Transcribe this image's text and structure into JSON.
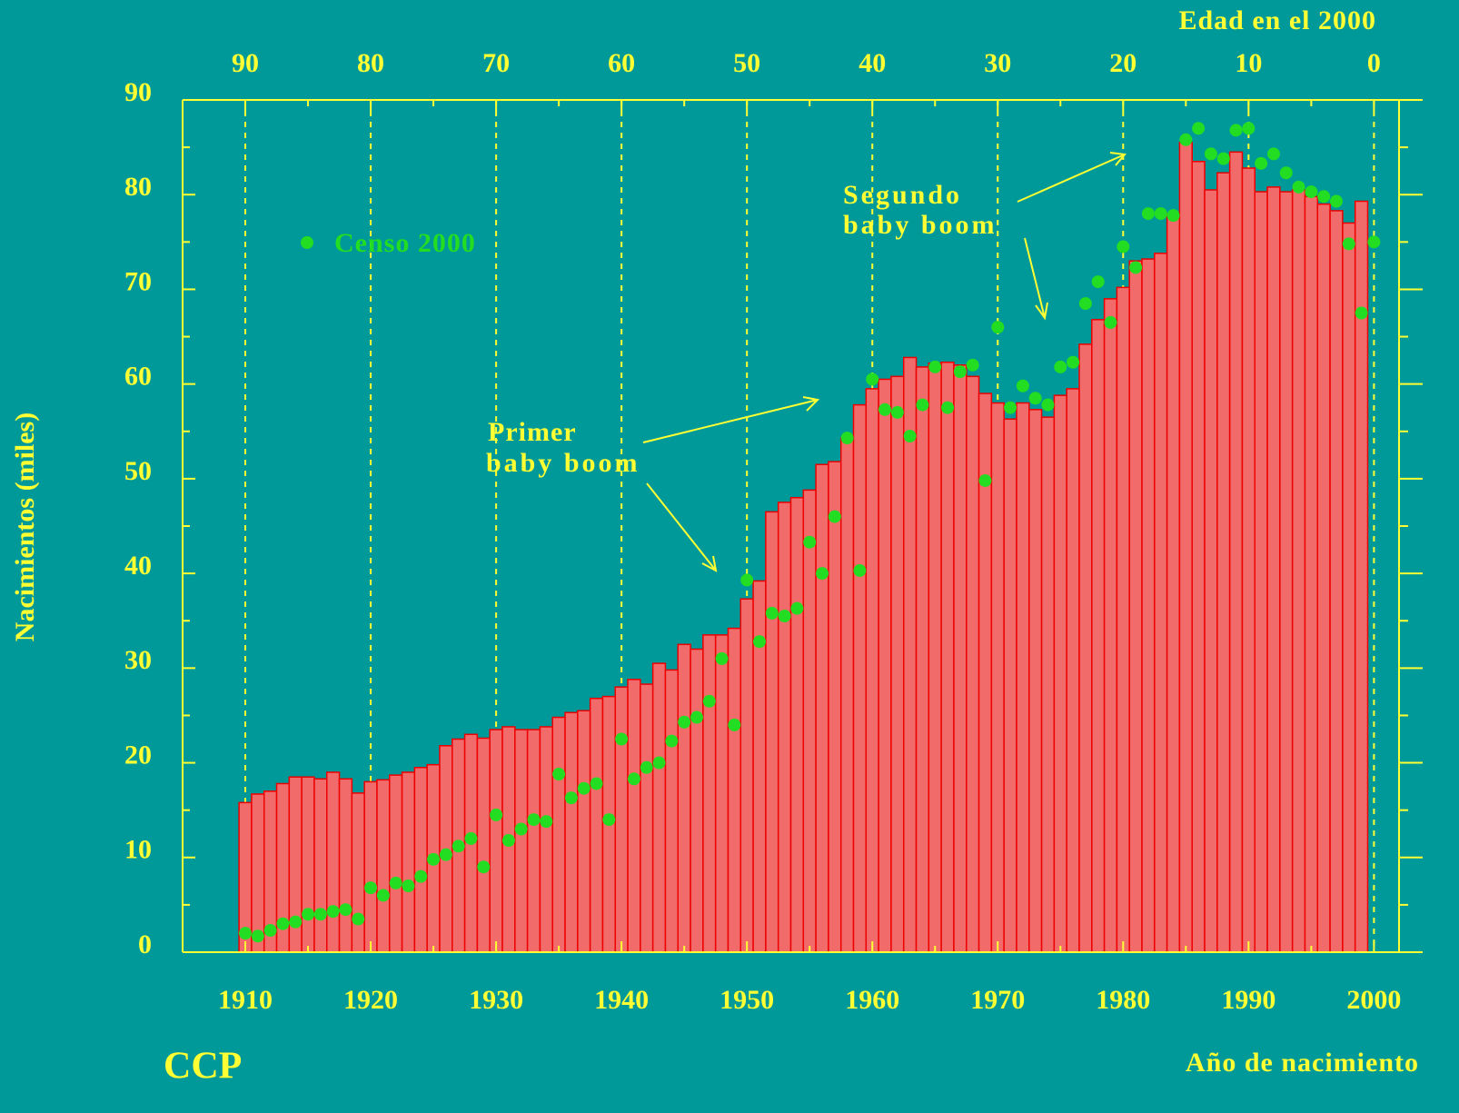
{
  "chart_data": {
    "type": "bar",
    "xlabel": "Año de nacimiento",
    "ylabel": "Nacimientos (miles)",
    "x2label": "Edad en el 2000",
    "xlim": [
      1905,
      2002
    ],
    "xticks": [
      1910,
      1920,
      1930,
      1940,
      1950,
      1960,
      1970,
      1980,
      1990,
      2000
    ],
    "x2lim": [
      95,
      -2
    ],
    "x2ticks": [
      90,
      80,
      70,
      60,
      50,
      40,
      30,
      20,
      10,
      0
    ],
    "ylim": [
      0,
      90
    ],
    "yticks": [
      0,
      10,
      20,
      30,
      40,
      50,
      60,
      70,
      80,
      90
    ],
    "grid": true,
    "legend": "upper left",
    "series": [
      {
        "type": "bar",
        "color": "#f26b6b",
        "x": [
          1910,
          1911,
          1912,
          1913,
          1914,
          1915,
          1916,
          1917,
          1918,
          1919,
          1920,
          1921,
          1922,
          1923,
          1924,
          1925,
          1926,
          1927,
          1928,
          1929,
          1930,
          1931,
          1932,
          1933,
          1934,
          1935,
          1936,
          1937,
          1938,
          1939,
          1940,
          1941,
          1942,
          1943,
          1944,
          1945,
          1946,
          1947,
          1948,
          1949,
          1950,
          1951,
          1952,
          1953,
          1954,
          1955,
          1956,
          1957,
          1958,
          1959,
          1960,
          1961,
          1962,
          1963,
          1964,
          1965,
          1966,
          1967,
          1968,
          1969,
          1970,
          1971,
          1972,
          1973,
          1974,
          1975,
          1976,
          1977,
          1978,
          1979,
          1980,
          1981,
          1982,
          1983,
          1984,
          1985,
          1986,
          1987,
          1988,
          1989,
          1990,
          1991,
          1992,
          1993,
          1994,
          1995,
          1996,
          1997,
          1998,
          1999
        ],
        "values": [
          15.8,
          16.7,
          17.0,
          17.8,
          18.5,
          18.5,
          18.3,
          19.0,
          18.3,
          16.8,
          18.0,
          18.2,
          18.7,
          19.0,
          19.5,
          19.8,
          21.8,
          22.5,
          23.0,
          22.6,
          23.5,
          23.8,
          23.5,
          23.5,
          23.8,
          24.8,
          25.3,
          25.5,
          26.8,
          27.0,
          28.0,
          28.8,
          28.3,
          30.5,
          29.8,
          32.5,
          32.0,
          33.5,
          33.5,
          34.2,
          37.3,
          39.2,
          46.5,
          47.5,
          48.0,
          48.8,
          51.5,
          51.8,
          54.3,
          57.8,
          59.5,
          60.5,
          60.8,
          62.8,
          61.8,
          62.2,
          62.3,
          62.0,
          60.8,
          59.0,
          58.0,
          56.3,
          58.0,
          57.3,
          56.5,
          58.8,
          59.5,
          64.2,
          66.8,
          69.0,
          70.2,
          73.0,
          73.2,
          73.8,
          78.0,
          85.5,
          83.5,
          80.5,
          82.3,
          84.5,
          82.8,
          80.3,
          80.8,
          80.3,
          80.5,
          79.8,
          79.0,
          78.3,
          77.0,
          79.3
        ]
      },
      {
        "type": "scatter",
        "name": "Censo 2000",
        "color": "#22dd22",
        "x": [
          1910,
          1911,
          1912,
          1913,
          1914,
          1915,
          1916,
          1917,
          1918,
          1919,
          1920,
          1921,
          1922,
          1923,
          1924,
          1925,
          1926,
          1927,
          1928,
          1929,
          1930,
          1931,
          1932,
          1933,
          1934,
          1935,
          1936,
          1937,
          1938,
          1939,
          1940,
          1941,
          1942,
          1943,
          1944,
          1945,
          1946,
          1947,
          1948,
          1949,
          1950,
          1951,
          1952,
          1953,
          1954,
          1955,
          1956,
          1957,
          1958,
          1959,
          1960,
          1961,
          1962,
          1963,
          1964,
          1965,
          1966,
          1967,
          1968,
          1969,
          1970,
          1971,
          1972,
          1973,
          1974,
          1975,
          1976,
          1977,
          1978,
          1979,
          1980,
          1981,
          1982,
          1983,
          1984,
          1985,
          1986,
          1987,
          1988,
          1989,
          1990,
          1991,
          1992,
          1993,
          1994,
          1995,
          1996,
          1997,
          1998,
          1999,
          2000
        ],
        "values": [
          2.0,
          1.7,
          2.3,
          3.0,
          3.2,
          4.0,
          4.0,
          4.3,
          4.5,
          3.5,
          6.8,
          6.0,
          7.3,
          7.0,
          8.0,
          9.8,
          10.3,
          11.2,
          12.0,
          9.0,
          14.5,
          11.8,
          13.0,
          14.0,
          13.8,
          18.8,
          16.3,
          17.3,
          17.8,
          14.0,
          22.5,
          18.3,
          19.5,
          20.0,
          22.3,
          24.3,
          24.8,
          26.5,
          31.0,
          24.0,
          39.3,
          32.8,
          35.8,
          35.5,
          36.3,
          43.3,
          40.0,
          46.0,
          54.3,
          40.3,
          60.5,
          57.3,
          57.0,
          54.5,
          57.8,
          61.8,
          57.5,
          61.3,
          62.0,
          49.8,
          66.0,
          57.5,
          59.8,
          58.5,
          57.8,
          61.8,
          62.3,
          68.5,
          70.8,
          66.5,
          74.5,
          72.3,
          78.0,
          78.0,
          77.8,
          85.8,
          87.0,
          84.3,
          83.8,
          86.8,
          87.0,
          83.3,
          84.3,
          82.3,
          80.8,
          80.3,
          79.8,
          79.3,
          74.8,
          67.5,
          75.0
        ]
      }
    ],
    "annotations": [
      {
        "lines": [
          "Primer",
          "baby boom"
        ]
      },
      {
        "lines": [
          "Segundo",
          "baby boom"
        ]
      }
    ],
    "footer": "CCP"
  }
}
